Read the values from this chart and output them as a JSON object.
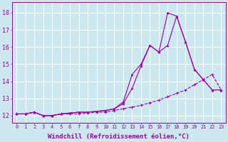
{
  "bg_color": "#cce8ee",
  "line_color": "#990099",
  "grid_color": "#ffffff",
  "xlabel": "Windchill (Refroidissement éolien,°C)",
  "xlabel_fontsize": 6.5,
  "xtick_fontsize": 5.0,
  "ytick_fontsize": 6.0,
  "xlim": [
    -0.5,
    23.5
  ],
  "ylim": [
    11.6,
    18.6
  ],
  "yticks": [
    12,
    13,
    14,
    15,
    16,
    17,
    18
  ],
  "xticks": [
    0,
    1,
    2,
    3,
    4,
    5,
    6,
    7,
    8,
    9,
    10,
    11,
    12,
    13,
    14,
    15,
    16,
    17,
    18,
    19,
    20,
    21,
    22,
    23
  ],
  "line1_x": [
    0,
    1,
    2,
    3,
    4,
    5,
    6,
    7,
    8,
    9,
    10,
    11,
    12,
    13,
    14,
    15,
    16,
    17,
    18,
    19,
    20,
    21,
    22,
    23
  ],
  "line1_y": [
    12.1,
    12.1,
    12.2,
    12.0,
    12.0,
    12.1,
    12.15,
    12.2,
    12.2,
    12.25,
    12.3,
    12.4,
    12.7,
    13.6,
    14.9,
    16.1,
    15.7,
    16.1,
    17.8,
    16.3,
    14.7,
    14.1,
    13.5,
    13.5
  ],
  "line2_x": [
    0,
    1,
    2,
    3,
    4,
    5,
    6,
    7,
    8,
    9,
    10,
    11,
    12,
    13,
    14,
    15,
    16,
    17,
    18,
    19,
    20,
    21,
    22,
    23
  ],
  "line2_y": [
    12.1,
    12.1,
    12.2,
    12.0,
    12.0,
    12.1,
    12.15,
    12.2,
    12.2,
    12.25,
    12.3,
    12.4,
    12.8,
    14.4,
    15.0,
    16.1,
    15.7,
    18.0,
    17.8,
    16.3,
    14.7,
    14.1,
    13.5,
    13.5
  ],
  "line3_x": [
    0,
    1,
    2,
    3,
    4,
    5,
    6,
    7,
    8,
    9,
    10,
    11,
    12,
    13,
    14,
    15,
    16,
    17,
    18,
    19,
    20,
    21,
    22,
    23
  ],
  "line3_y": [
    12.1,
    12.1,
    12.2,
    12.0,
    12.0,
    12.1,
    12.1,
    12.1,
    12.15,
    12.2,
    12.2,
    12.3,
    12.4,
    12.5,
    12.6,
    12.75,
    12.9,
    13.1,
    13.3,
    13.5,
    13.8,
    14.1,
    14.4,
    13.5
  ]
}
